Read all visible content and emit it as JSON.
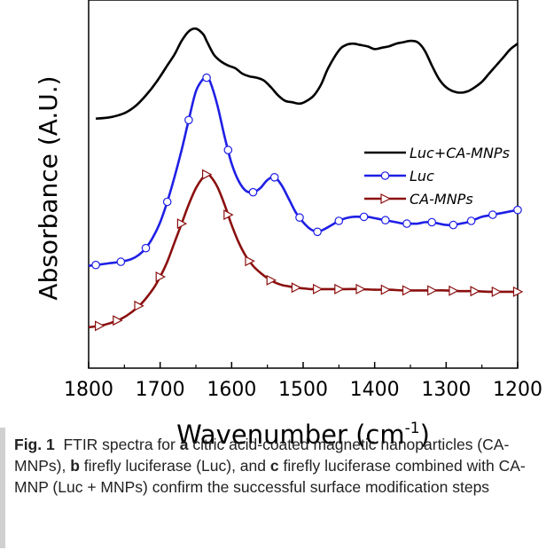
{
  "chart_data": {
    "type": "line",
    "title": "",
    "xlabel": "Wavenumber (cm",
    "xlabel_sup": "-1",
    "xlabel_close": ")",
    "ylabel": "Absorbance (A.U.)",
    "xlim": [
      1800,
      1200
    ],
    "x_reversed": true,
    "xticks": [
      "1800",
      "1700",
      "1600",
      "1500",
      "1400",
      "1300",
      "1200"
    ],
    "yticks_shown": false,
    "grid": false,
    "legend_position": "upper-right",
    "series": [
      {
        "name": "Luc+CA-MNPs",
        "color": "#000000",
        "marker": "none",
        "x": [
          1790,
          1770,
          1750,
          1735,
          1720,
          1705,
          1690,
          1680,
          1670,
          1660,
          1650,
          1640,
          1635,
          1625,
          1615,
          1605,
          1595,
          1585,
          1575,
          1565,
          1555,
          1545,
          1535,
          1525,
          1515,
          1505,
          1495,
          1485,
          1475,
          1465,
          1450,
          1440,
          1430,
          1420,
          1410,
          1400,
          1390,
          1380,
          1370,
          1360,
          1350,
          1340,
          1330,
          1320,
          1310,
          1300,
          1290,
          1280,
          1270,
          1260,
          1250,
          1240,
          1230,
          1220,
          1210,
          1200
        ],
        "y": [
          1.83,
          1.84,
          1.87,
          1.92,
          2.0,
          2.1,
          2.22,
          2.3,
          2.4,
          2.47,
          2.49,
          2.45,
          2.4,
          2.3,
          2.25,
          2.22,
          2.2,
          2.16,
          2.14,
          2.13,
          2.11,
          2.06,
          2.0,
          1.96,
          1.95,
          1.94,
          1.96,
          2.0,
          2.08,
          2.2,
          2.33,
          2.37,
          2.38,
          2.37,
          2.36,
          2.34,
          2.35,
          2.36,
          2.38,
          2.39,
          2.4,
          2.39,
          2.33,
          2.22,
          2.12,
          2.06,
          2.03,
          2.02,
          2.03,
          2.06,
          2.1,
          2.16,
          2.22,
          2.28,
          2.34,
          2.38
        ]
      },
      {
        "name": "Luc",
        "color": "#1f1fe6",
        "marker": "circle",
        "x": [
          1800,
          1785,
          1770,
          1755,
          1740,
          1730,
          1720,
          1710,
          1700,
          1690,
          1680,
          1670,
          1660,
          1650,
          1640,
          1635,
          1630,
          1620,
          1610,
          1600,
          1590,
          1580,
          1570,
          1560,
          1550,
          1540,
          1530,
          1520,
          1510,
          1500,
          1490,
          1480,
          1470,
          1460,
          1450,
          1440,
          1430,
          1420,
          1410,
          1400,
          1390,
          1380,
          1370,
          1360,
          1350,
          1340,
          1330,
          1320,
          1310,
          1300,
          1290,
          1280,
          1270,
          1260,
          1250,
          1240,
          1230,
          1220,
          1210,
          1200
        ],
        "y": [
          0.75,
          0.76,
          0.77,
          0.78,
          0.8,
          0.83,
          0.88,
          0.96,
          1.07,
          1.22,
          1.4,
          1.6,
          1.82,
          2.03,
          2.12,
          2.13,
          2.1,
          1.93,
          1.7,
          1.5,
          1.37,
          1.3,
          1.29,
          1.32,
          1.38,
          1.4,
          1.34,
          1.24,
          1.14,
          1.07,
          1.02,
          1.0,
          1.02,
          1.05,
          1.08,
          1.1,
          1.11,
          1.11,
          1.11,
          1.1,
          1.09,
          1.08,
          1.07,
          1.06,
          1.06,
          1.06,
          1.07,
          1.07,
          1.06,
          1.05,
          1.05,
          1.06,
          1.07,
          1.09,
          1.11,
          1.12,
          1.13,
          1.14,
          1.15,
          1.16
        ],
        "marker_x": [
          1790,
          1755,
          1720,
          1690,
          1660,
          1635,
          1605,
          1570,
          1540,
          1505,
          1480,
          1450,
          1415,
          1385,
          1355,
          1320,
          1290,
          1265,
          1235,
          1200
        ]
      },
      {
        "name": "CA-MNPs",
        "color": "#8b0f0f",
        "marker": "triangle-right",
        "x": [
          1800,
          1785,
          1770,
          1755,
          1740,
          1725,
          1710,
          1700,
          1690,
          1680,
          1670,
          1660,
          1650,
          1640,
          1635,
          1630,
          1620,
          1610,
          1600,
          1590,
          1580,
          1570,
          1560,
          1550,
          1540,
          1530,
          1520,
          1510,
          1500,
          1490,
          1480,
          1470,
          1460,
          1440,
          1420,
          1400,
          1380,
          1360,
          1340,
          1320,
          1300,
          1280,
          1260,
          1240,
          1220,
          1200
        ],
        "y": [
          0.3,
          0.31,
          0.33,
          0.36,
          0.41,
          0.48,
          0.58,
          0.67,
          0.78,
          0.92,
          1.06,
          1.2,
          1.32,
          1.4,
          1.42,
          1.41,
          1.33,
          1.2,
          1.05,
          0.92,
          0.82,
          0.75,
          0.7,
          0.66,
          0.63,
          0.61,
          0.6,
          0.59,
          0.585,
          0.58,
          0.58,
          0.58,
          0.58,
          0.58,
          0.58,
          0.575,
          0.575,
          0.57,
          0.57,
          0.57,
          0.57,
          0.565,
          0.565,
          0.56,
          0.56,
          0.56
        ],
        "marker_x": [
          1785,
          1760,
          1730,
          1700,
          1670,
          1635,
          1605,
          1575,
          1545,
          1510,
          1480,
          1450,
          1420,
          1385,
          1355,
          1320,
          1290,
          1260,
          1230,
          1200
        ]
      }
    ],
    "ylim": [
      0,
      2.7
    ]
  },
  "caption": {
    "fig_label": "Fig. 1",
    "t1": "FTIR spectra for ",
    "a": "a",
    "t2": " citric acid-coated magnetic nanoparticles (CA-MNPs), ",
    "b": "b",
    "t3": " firefly luciferase (Luc), and ",
    "c": "c",
    "t4": " firefly luciferase combined with CA-MNP (Luc + MNPs) confirm the successful surface modification steps"
  }
}
